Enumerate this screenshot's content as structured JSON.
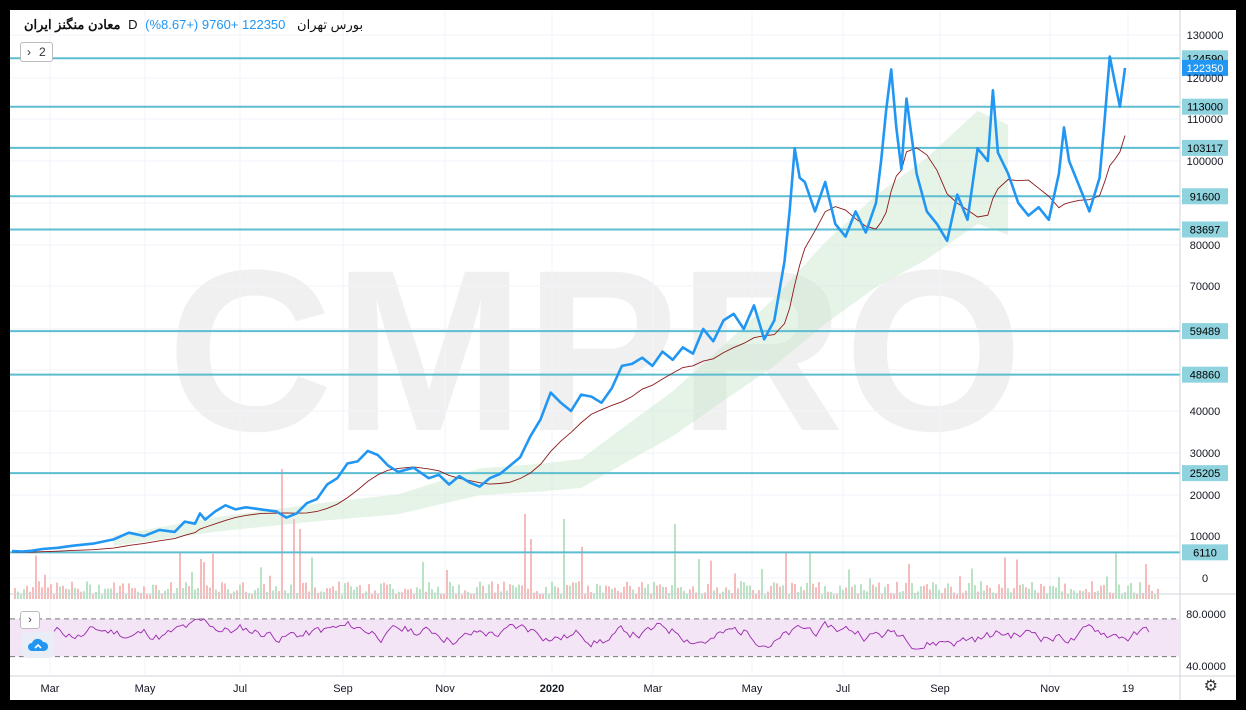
{
  "header": {
    "symbol": "معادن منگنز ایران",
    "timeframe": "D",
    "exchange": "بورس تهران",
    "last": "122350",
    "change": "+9760 (+8.67%)"
  },
  "legend": {
    "count": "2"
  },
  "watermark": "CMPRO",
  "colors": {
    "price": "#2196f3",
    "level": "#5dbdd0",
    "label_bg": "#8fd3df",
    "last_bg": "#2196f3",
    "rsi": "#9c27b0",
    "kijun": "#8b1a1a"
  },
  "chart_data": {
    "type": "line",
    "y_scale": "sqrt-like (as displayed)",
    "y_ticks": [
      0,
      10000,
      20000,
      30000,
      40000,
      50000,
      60000,
      70000,
      80000,
      90000,
      100000,
      110000,
      120000,
      130000
    ],
    "y_tick_labels": [
      "0",
      "10000",
      "20000",
      "30000",
      "40000",
      "50000",
      "60000",
      "70000",
      "80000",
      "90000",
      "100000",
      "110000",
      "120000",
      "130000"
    ],
    "x_tick_labels": [
      "Mar",
      "May",
      "Jul",
      "Sep",
      "Nov",
      "2020",
      "Mar",
      "May",
      "Jul",
      "Sep",
      "Nov",
      "19"
    ],
    "levels": [
      {
        "value": 124590,
        "label": "124590"
      },
      {
        "value": 113000,
        "label": "113000"
      },
      {
        "value": 103117,
        "label": "103117"
      },
      {
        "value": 91600,
        "label": "91600"
      },
      {
        "value": 83697,
        "label": "83697"
      },
      {
        "value": 59489,
        "label": "59489"
      },
      {
        "value": 48860,
        "label": "48860"
      },
      {
        "value": 25205,
        "label": "25205"
      },
      {
        "value": 6110,
        "label": "6110"
      }
    ],
    "last_price": {
      "value": 122350,
      "label": "122350"
    },
    "series": [
      {
        "name": "",
        "points": [
          [
            0,
            6400
          ],
          [
            0.01,
            6300
          ],
          [
            0.02,
            6500
          ],
          [
            0.03,
            6900
          ],
          [
            0.045,
            7200
          ],
          [
            0.06,
            7700
          ],
          [
            0.08,
            8200
          ],
          [
            0.1,
            9200
          ],
          [
            0.115,
            10800
          ],
          [
            0.13,
            10000
          ],
          [
            0.145,
            11500
          ],
          [
            0.16,
            11000
          ],
          [
            0.17,
            13500
          ],
          [
            0.18,
            13000
          ],
          [
            0.185,
            15500
          ],
          [
            0.19,
            14000
          ],
          [
            0.2,
            16000
          ],
          [
            0.21,
            17500
          ],
          [
            0.22,
            16500
          ],
          [
            0.23,
            17000
          ],
          [
            0.245,
            16500
          ],
          [
            0.26,
            16000
          ],
          [
            0.27,
            14500
          ],
          [
            0.28,
            15500
          ],
          [
            0.29,
            18000
          ],
          [
            0.3,
            19000
          ],
          [
            0.31,
            22500
          ],
          [
            0.32,
            24000
          ],
          [
            0.33,
            27500
          ],
          [
            0.34,
            28000
          ],
          [
            0.35,
            30500
          ],
          [
            0.36,
            29500
          ],
          [
            0.37,
            27000
          ],
          [
            0.38,
            25500
          ],
          [
            0.395,
            26500
          ],
          [
            0.41,
            24000
          ],
          [
            0.42,
            24800
          ],
          [
            0.43,
            22500
          ],
          [
            0.44,
            24500
          ],
          [
            0.45,
            23000
          ],
          [
            0.46,
            22000
          ],
          [
            0.47,
            24000
          ],
          [
            0.48,
            25000
          ],
          [
            0.49,
            27000
          ],
          [
            0.5,
            29000
          ],
          [
            0.51,
            34000
          ],
          [
            0.52,
            38000
          ],
          [
            0.53,
            44500
          ],
          [
            0.54,
            42000
          ],
          [
            0.55,
            40000
          ],
          [
            0.56,
            44000
          ],
          [
            0.57,
            43500
          ],
          [
            0.58,
            42000
          ],
          [
            0.59,
            45500
          ],
          [
            0.6,
            51000
          ],
          [
            0.61,
            51500
          ],
          [
            0.62,
            53000
          ],
          [
            0.63,
            51000
          ],
          [
            0.64,
            54500
          ],
          [
            0.65,
            52500
          ],
          [
            0.66,
            55500
          ],
          [
            0.67,
            54000
          ],
          [
            0.68,
            60000
          ],
          [
            0.69,
            57000
          ],
          [
            0.7,
            62000
          ],
          [
            0.71,
            63500
          ],
          [
            0.72,
            60000
          ],
          [
            0.73,
            65500
          ],
          [
            0.74,
            57500
          ],
          [
            0.75,
            62000
          ],
          [
            0.76,
            76000
          ],
          [
            0.765,
            88000
          ],
          [
            0.77,
            103000
          ],
          [
            0.775,
            96000
          ],
          [
            0.78,
            95000
          ],
          [
            0.79,
            88000
          ],
          [
            0.8,
            95000
          ],
          [
            0.81,
            85000
          ],
          [
            0.82,
            82000
          ],
          [
            0.83,
            88000
          ],
          [
            0.84,
            83000
          ],
          [
            0.85,
            90000
          ],
          [
            0.855,
            100000
          ],
          [
            0.86,
            112000
          ],
          [
            0.865,
            122000
          ],
          [
            0.87,
            108000
          ],
          [
            0.875,
            98000
          ],
          [
            0.88,
            115000
          ],
          [
            0.89,
            97000
          ],
          [
            0.9,
            88000
          ],
          [
            0.91,
            85000
          ],
          [
            0.92,
            81000
          ],
          [
            0.93,
            92000
          ],
          [
            0.94,
            86000
          ],
          [
            0.95,
            103000
          ],
          [
            0.96,
            100000
          ],
          [
            0.965,
            117000
          ],
          [
            0.97,
            102000
          ],
          [
            0.98,
            97000
          ],
          [
            0.99,
            90000
          ],
          [
            1.0,
            87000
          ],
          [
            1.01,
            89000
          ],
          [
            1.02,
            86000
          ],
          [
            1.03,
            97000
          ],
          [
            1.035,
            108000
          ],
          [
            1.04,
            100000
          ],
          [
            1.05,
            94000
          ],
          [
            1.06,
            88000
          ],
          [
            1.07,
            96000
          ],
          [
            1.075,
            110000
          ],
          [
            1.08,
            125000
          ],
          [
            1.085,
            119000
          ],
          [
            1.09,
            113000
          ],
          [
            1.095,
            122350
          ]
        ]
      }
    ],
    "rsi": {
      "upper": 70,
      "lower": 30,
      "tick_labels": [
        "80.0000",
        "40.0000"
      ]
    }
  }
}
